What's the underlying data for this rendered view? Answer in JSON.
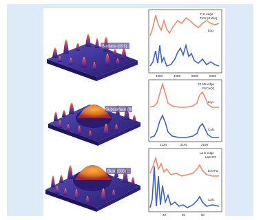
{
  "figure": {
    "surface_labels": [
      "Surface (001)",
      "Subsurface (002)",
      "Bulk (003)"
    ],
    "panels": [
      {
        "edge_label": "Ti K-edge",
        "sample_label": "TiO2 (Rutile)",
        "exp_label": "Exp.",
        "calc_label": "",
        "x_ticks": [
          "4960",
          "4980",
          "5000",
          "5020"
        ]
      },
      {
        "edge_label": "Pt M5 edge",
        "sample_label": "Pt/CeO2",
        "exp_label": "Exp.",
        "calc_label": "Calc.",
        "x_ticks": [
          "2120",
          "2140",
          "2160"
        ]
      },
      {
        "edge_label": "La K-edge",
        "sample_label": "LaCrO3",
        "exp_label": "EXAFS",
        "calc_label": "Calc.",
        "x_ticks": [
          "40",
          "60",
          "80"
        ]
      }
    ],
    "colors": {
      "background": "#dcebf7",
      "experiment_curve": "#f08a68",
      "calculated_curve": "#3a62c8",
      "surface_base": "#3b2d8a",
      "surface_peak": "#f5a04a"
    }
  }
}
